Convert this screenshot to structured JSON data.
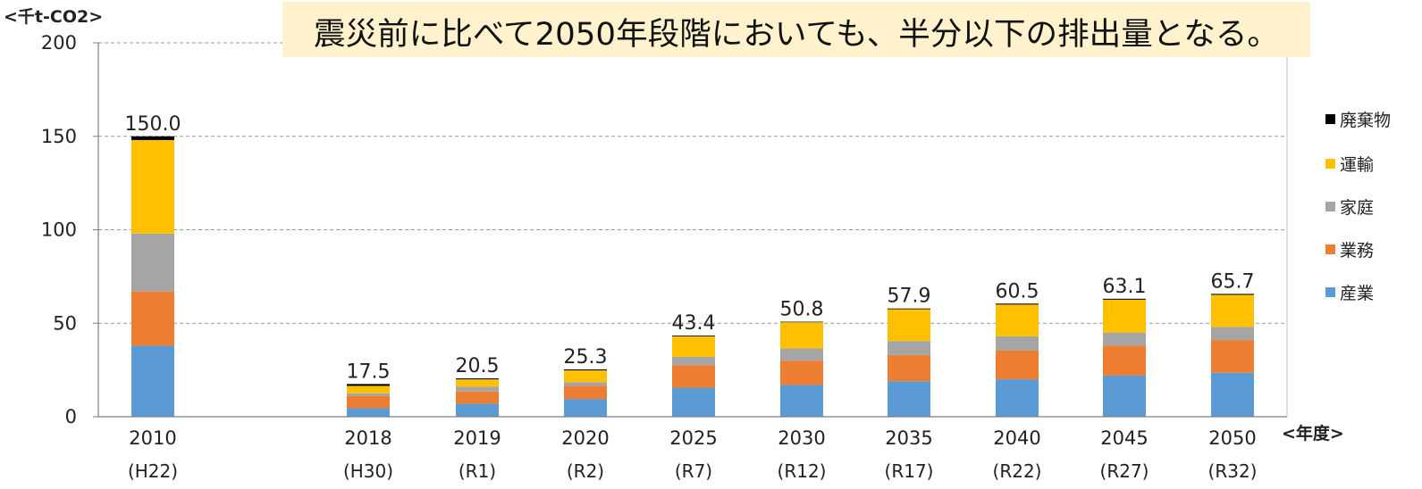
{
  "chart_data": {
    "type": "bar",
    "stacked": true,
    "headline": "震災前に比べて2050年段階においても、半分以下の排出量となる。",
    "y_unit_label": "<千t-CO2>",
    "x_unit_label": "<年度>",
    "ylim": [
      0,
      200
    ],
    "yticks": [
      0,
      50,
      100,
      150,
      200
    ],
    "grid": true,
    "legend_position": "right",
    "categories": [
      "2010",
      "2018",
      "2019",
      "2020",
      "2025",
      "2030",
      "2035",
      "2040",
      "2045",
      "2050"
    ],
    "subcategories": [
      "(H22)",
      "(H30)",
      "(R1)",
      "(R2)",
      "(R7)",
      "(R12)",
      "(R17)",
      "(R22)",
      "(R27)",
      "(R32)"
    ],
    "series": [
      {
        "name": "産業",
        "color": "#5B9BD5",
        "values": [
          38.0,
          4.5,
          7.0,
          9.5,
          15.5,
          17.0,
          19.0,
          20.0,
          22.0,
          23.5
        ]
      },
      {
        "name": "業務",
        "color": "#ED7D31",
        "values": [
          29.0,
          6.5,
          6.5,
          7.0,
          12.0,
          13.0,
          14.0,
          15.5,
          16.0,
          17.5
        ]
      },
      {
        "name": "家庭",
        "color": "#A5A5A5",
        "values": [
          31.0,
          1.5,
          2.5,
          2.0,
          4.5,
          6.5,
          7.5,
          7.5,
          7.0,
          7.0
        ]
      },
      {
        "name": "運輸",
        "color": "#FFC000",
        "values": [
          50.0,
          4.0,
          4.0,
          6.3,
          11.0,
          14.0,
          17.0,
          17.0,
          17.6,
          17.2
        ]
      },
      {
        "name": "廃棄物",
        "color": "#000000",
        "values": [
          2.0,
          1.0,
          0.5,
          0.5,
          0.4,
          0.3,
          0.4,
          0.5,
          0.5,
          0.5
        ]
      }
    ],
    "totals": [
      "150.0",
      "17.5",
      "20.5",
      "25.3",
      "43.4",
      "50.8",
      "57.9",
      "60.5",
      "63.1",
      "65.7"
    ]
  }
}
